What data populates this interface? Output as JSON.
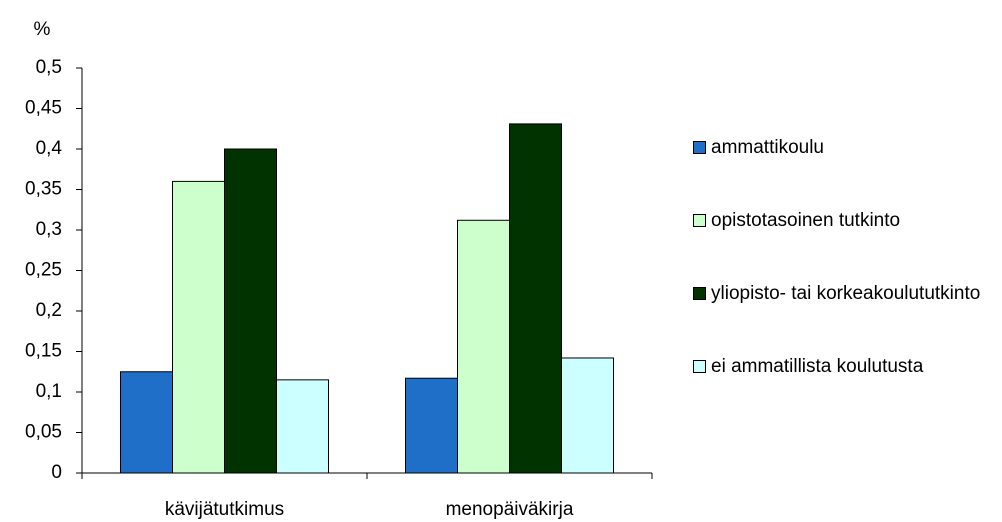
{
  "chart_data": {
    "type": "bar",
    "y_label": "%",
    "categories": [
      "kävijätutkimus",
      "menopäiväkirja"
    ],
    "series": [
      {
        "name": "ammattikoulu",
        "color": "#1f6fc9",
        "values": [
          0.125,
          0.117
        ]
      },
      {
        "name": "opistotasoinen tutkinto",
        "color": "#ccffcc",
        "values": [
          0.36,
          0.312
        ]
      },
      {
        "name": "yliopisto- tai korkeakoulututkinto",
        "color": "#003300",
        "values": [
          0.4,
          0.431
        ]
      },
      {
        "name": "ei ammatillista koulutusta",
        "color": "#ccffff",
        "values": [
          0.115,
          0.142
        ]
      }
    ],
    "ylim": [
      0,
      0.5
    ],
    "yticks": [
      0,
      {
        "value": 0.05,
        "label": "0,05"
      },
      {
        "value": 0.1,
        "label": "0,1"
      },
      {
        "value": 0.15,
        "label": "0,15"
      },
      {
        "value": 0.2,
        "label": "0,2"
      },
      {
        "value": 0.25,
        "label": "0,25"
      },
      {
        "value": 0.3,
        "label": "0,3"
      },
      {
        "value": 0.35,
        "label": "0,35"
      },
      {
        "value": 0.4,
        "label": "0,4"
      },
      {
        "value": 0.45,
        "label": "0,45"
      },
      {
        "value": 0.5,
        "label": "0,5"
      }
    ],
    "grid": false,
    "legend": "right"
  }
}
